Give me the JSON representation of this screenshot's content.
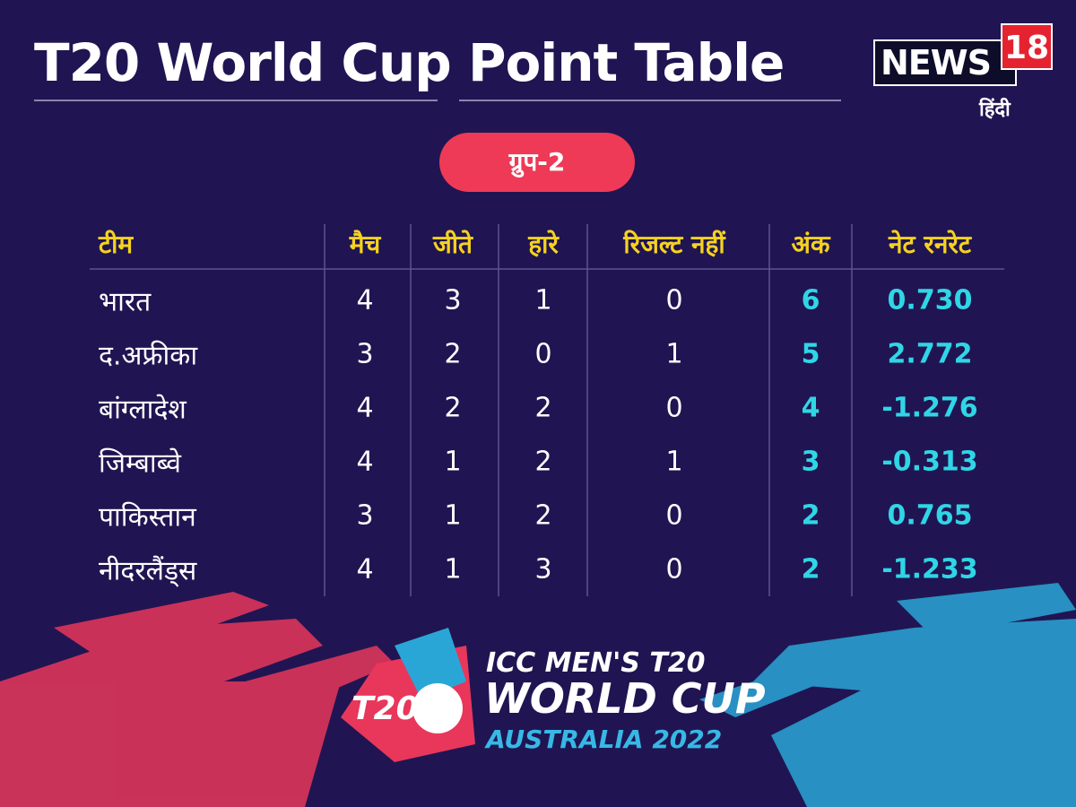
{
  "header": {
    "title": "T20 World Cup Point Table",
    "logo": {
      "brand": "NEWS",
      "number": "18",
      "language": "हिंदी"
    }
  },
  "group": "ग्रुप-2",
  "table": {
    "columns": [
      "टीम",
      "मैच",
      "जीते",
      "हारे",
      "रिजल्ट नहीं",
      "अंक",
      "नेट रनरेट"
    ],
    "rows": [
      [
        "भारत",
        "4",
        "3",
        "1",
        "0",
        "6",
        "0.730"
      ],
      [
        "द.अफ्रीका",
        "3",
        "2",
        "0",
        "1",
        "5",
        "2.772"
      ],
      [
        "बांग्लादेश",
        "4",
        "2",
        "2",
        "0",
        "4",
        "-1.276"
      ],
      [
        "जिम्बाब्वे",
        "4",
        "1",
        "2",
        "1",
        "3",
        "-0.313"
      ],
      [
        "पाकिस्तान",
        "3",
        "1",
        "2",
        "0",
        "2",
        "0.765"
      ],
      [
        "नीदरलैंड्स",
        "4",
        "1",
        "3",
        "0",
        "2",
        "-1.233"
      ]
    ]
  },
  "footer": {
    "emblem": "T20",
    "line1": "ICC MEN'S T20",
    "line2": "WORLD CUP",
    "line3": "AUSTRALIA 2022"
  }
}
